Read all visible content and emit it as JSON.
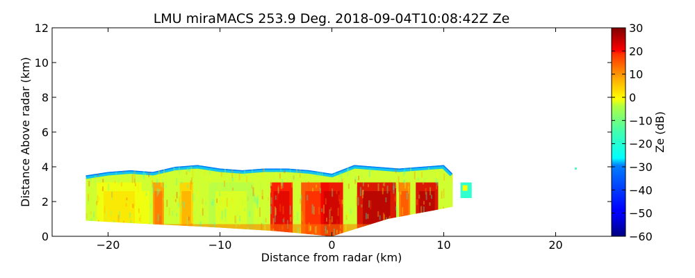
{
  "chart_data": {
    "type": "heatmap",
    "title": "LMU miraMACS 253.9 Deg. 2018-09-04T10:08:42Z  Ze",
    "xlabel": "Distance from radar (km)",
    "ylabel": "Distance Above radar  (km)",
    "xlim": [
      -25,
      25
    ],
    "ylim": [
      0,
      12
    ],
    "xticks": [
      -20,
      -10,
      0,
      10,
      20
    ],
    "xtick_labels": [
      "−20",
      "−10",
      "0",
      "10",
      "20"
    ],
    "yticks": [
      0,
      2,
      4,
      6,
      8,
      10,
      12
    ],
    "ytick_labels": [
      "0",
      "2",
      "4",
      "6",
      "8",
      "10",
      "12"
    ],
    "colorbar": {
      "label": "Ze (dB)",
      "range": [
        -60,
        30
      ],
      "ticks": [
        30,
        20,
        10,
        0,
        -10,
        -20,
        -30,
        -40,
        -50,
        -60
      ],
      "tick_labels": [
        "30",
        "20",
        "10",
        "0",
        "−10",
        "−20",
        "−30",
        "−40",
        "−50",
        "−60"
      ],
      "colormap": "jet"
    },
    "echo_region": {
      "x_range_km": [
        -22,
        12.5
      ],
      "top_height_km": [
        [
          -22,
          3.5
        ],
        [
          -20,
          3.7
        ],
        [
          -18,
          3.8
        ],
        [
          -16,
          3.7
        ],
        [
          -14,
          4.0
        ],
        [
          -12,
          4.1
        ],
        [
          -10,
          3.9
        ],
        [
          -8,
          3.8
        ],
        [
          -6,
          3.9
        ],
        [
          -4,
          3.9
        ],
        [
          -2,
          3.8
        ],
        [
          0,
          3.6
        ],
        [
          2,
          4.1
        ],
        [
          4,
          4.0
        ],
        [
          6,
          3.9
        ],
        [
          8,
          4.0
        ],
        [
          10,
          4.1
        ],
        [
          10.8,
          3.6
        ]
      ],
      "bottom_height_km": [
        [
          -22,
          0.9
        ],
        [
          -10,
          0.5
        ],
        [
          -5,
          0.3
        ],
        [
          0,
          0.0
        ],
        [
          5,
          1.0
        ],
        [
          10,
          1.6
        ],
        [
          10.8,
          1.7
        ]
      ],
      "detached_echo": {
        "x_range_km": [
          11.5,
          12.5
        ],
        "height_range_km": [
          2.2,
          3.1
        ]
      },
      "isolated_point_km": [
        21.8,
        3.9
      ]
    },
    "reflectivity_features_dB": [
      {
        "x_center_km": -17,
        "width_km": 2.0,
        "ze_dB": -8
      },
      {
        "x_center_km": -15.5,
        "width_km": 1.0,
        "ze_dB": 5
      },
      {
        "x_center_km": -13,
        "width_km": 1.2,
        "ze_dB": 0
      },
      {
        "x_center_km": -4.5,
        "width_km": 2.0,
        "ze_dB": 18
      },
      {
        "x_center_km": -1.5,
        "width_km": 2.5,
        "ze_dB": 12
      },
      {
        "x_center_km": 0,
        "width_km": 2.0,
        "ze_dB": 20
      },
      {
        "x_center_km": 4,
        "width_km": 3.5,
        "ze_dB": 22
      },
      {
        "x_center_km": 6.5,
        "width_km": 1.0,
        "ze_dB": 8
      },
      {
        "x_center_km": 8.5,
        "width_km": 2.0,
        "ze_dB": 22
      },
      {
        "x_center_km": -19,
        "width_km": 4.0,
        "ze_dB": -5
      },
      {
        "x_center_km": -9,
        "width_km": 4.0,
        "ze_dB": -10
      }
    ],
    "cloud_top_ze_dB": -32,
    "background_ze_dB": -8
  }
}
